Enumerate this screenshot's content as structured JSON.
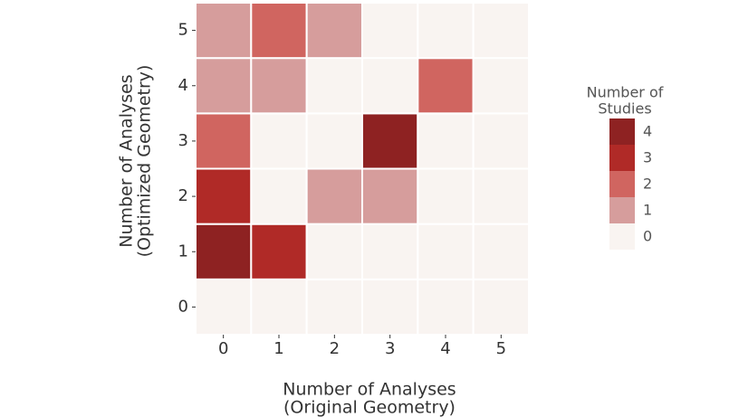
{
  "chart_data": {
    "type": "heatmap",
    "x_label": [
      "Number of Analyses",
      "(Original Geometry)"
    ],
    "y_label": [
      "Number of Analyses",
      "(Optimized Geometry)"
    ],
    "x": [
      0,
      1,
      2,
      3,
      4,
      5
    ],
    "y": [
      0,
      1,
      2,
      3,
      4,
      5
    ],
    "z": [
      [
        0,
        0,
        0,
        0,
        0,
        0
      ],
      [
        4,
        3,
        0,
        0,
        0,
        0
      ],
      [
        3,
        0,
        1,
        1,
        0,
        0
      ],
      [
        2,
        0,
        0,
        4,
        0,
        0
      ],
      [
        1,
        1,
        0,
        0,
        2,
        0
      ],
      [
        1,
        2,
        1,
        0,
        0,
        0
      ]
    ],
    "legend_title": [
      "Number of",
      "Studies"
    ],
    "colorscale": [
      {
        "value": 4,
        "color": "#8e2222"
      },
      {
        "value": 3,
        "color": "#b02a27"
      },
      {
        "value": 2,
        "color": "#d06560"
      },
      {
        "value": 1,
        "color": "#d69d9c"
      },
      {
        "value": 0,
        "color": "#f9f4f1"
      }
    ]
  }
}
